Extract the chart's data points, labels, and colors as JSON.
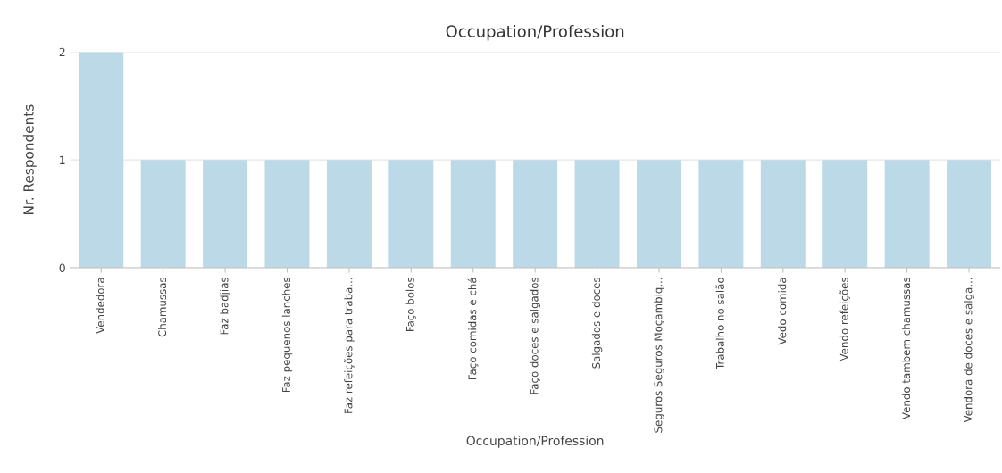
{
  "chart_data": {
    "type": "bar",
    "title": "Occupation/Profession",
    "xlabel": "Occupation/Profession",
    "ylabel": "Nr. Respondents",
    "categories": [
      "Vendedora",
      "Chamussas",
      "Faz badjias",
      "Faz pequenos lanches",
      "Faz refeições para traba...",
      "Faço bolos",
      "Faço comidas e chá",
      "Faço doces e salgados",
      "Salgados e doces",
      "Seguros Seguros Moçambiq...",
      "Trabalho no salão",
      "Vedo comida",
      "Vendo refeições",
      "Vendo tambem chamussas",
      "Vendora de doces e salga..."
    ],
    "values": [
      2,
      1,
      1,
      1,
      1,
      1,
      1,
      1,
      1,
      1,
      1,
      1,
      1,
      1,
      1
    ],
    "color": "#bcd9e8",
    "ylim": [
      0,
      2
    ],
    "yticks": [
      0,
      1,
      2
    ],
    "grid": "y"
  }
}
